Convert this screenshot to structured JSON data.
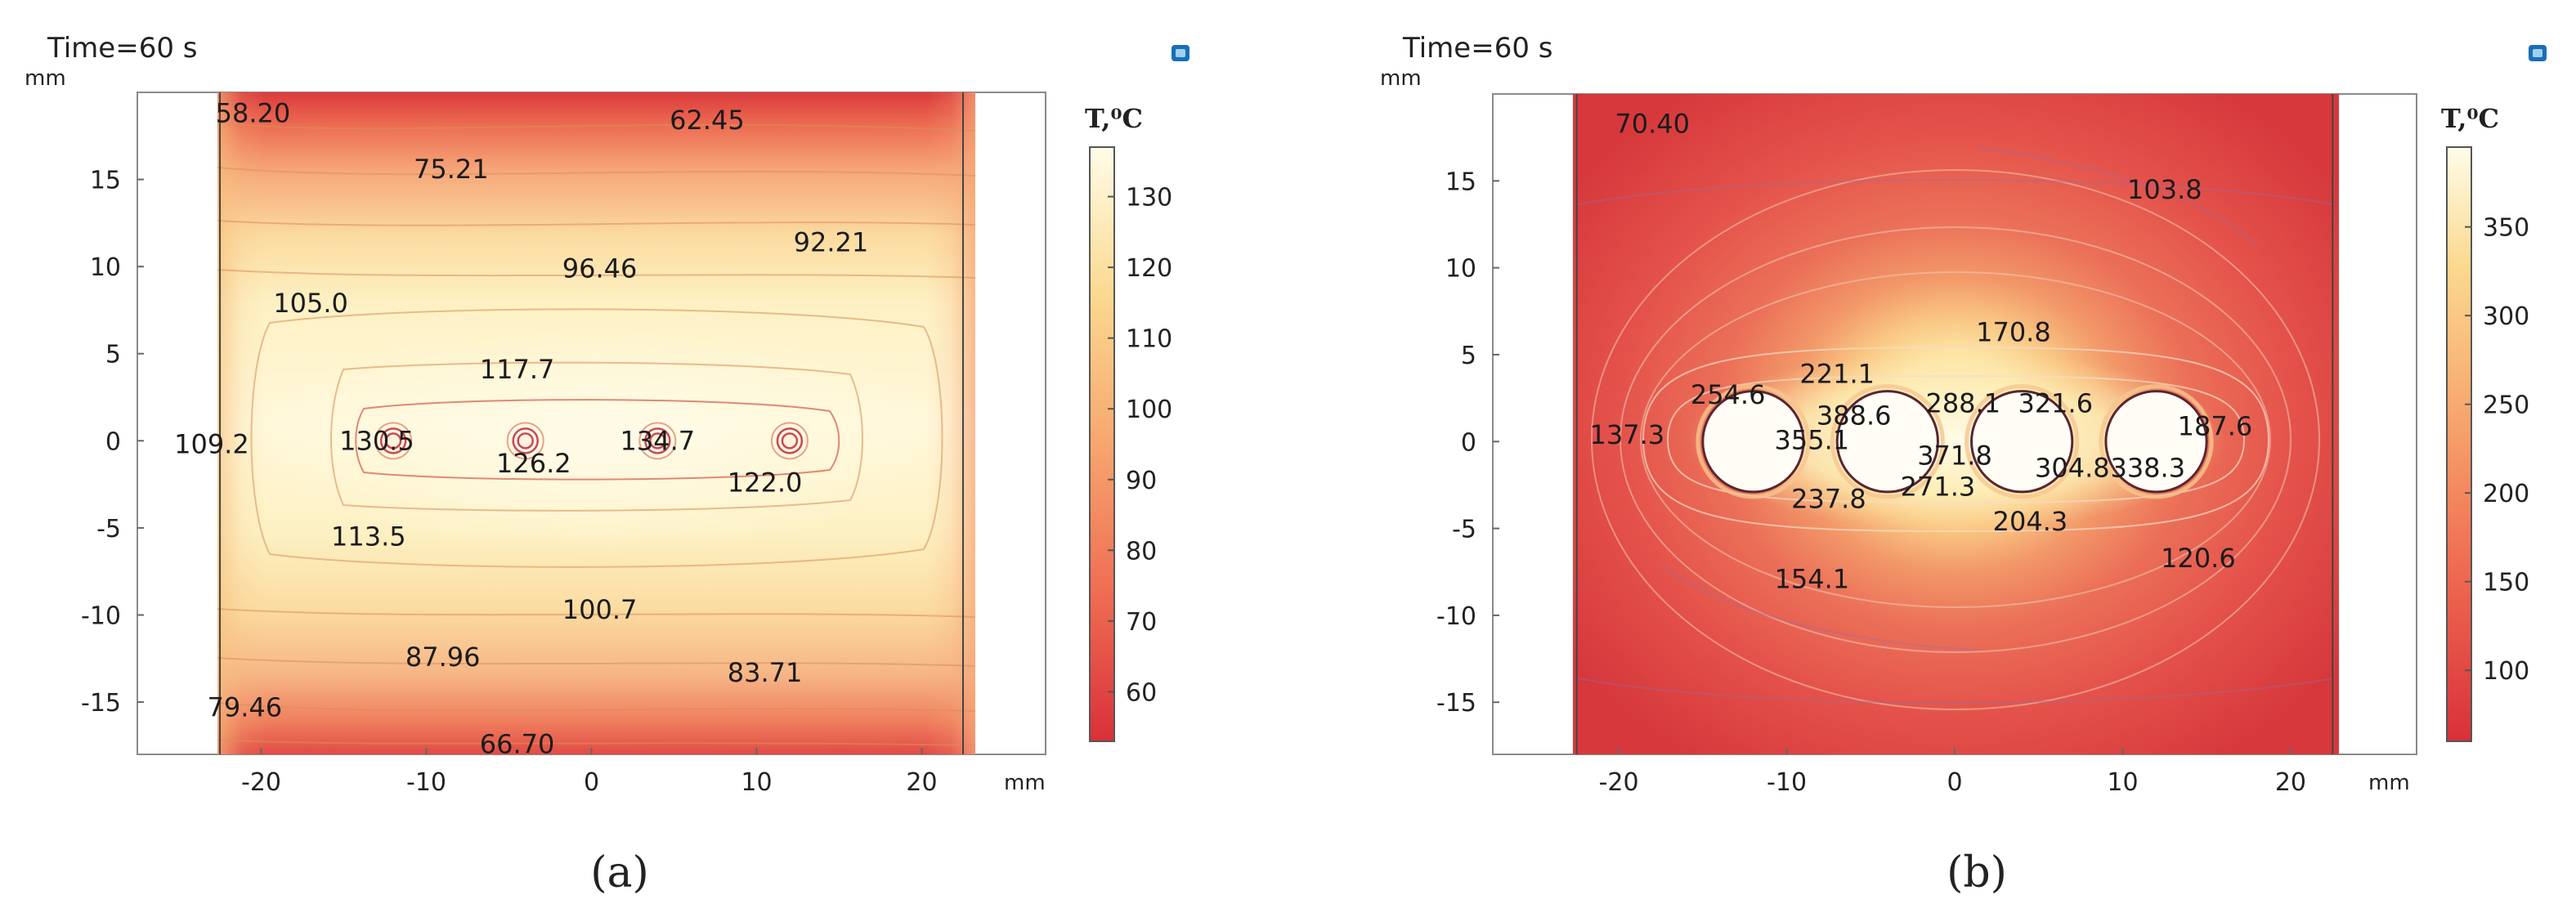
{
  "figure": {
    "captions": [
      "(a)",
      "(b)"
    ]
  },
  "chart_data": [
    {
      "type": "heatmap",
      "panel": "a",
      "title": "Time=60 s",
      "x_unit_label": "mm",
      "y_unit_label": "mm",
      "xlim": [
        -27.5,
        27.5
      ],
      "ylim": [
        -18,
        20
      ],
      "domain_x": [
        -22.5,
        22.5
      ],
      "domain_y": [
        -18,
        20
      ],
      "x_ticks": [
        -20,
        -10,
        0,
        10,
        20
      ],
      "y_ticks": [
        15,
        10,
        5,
        0,
        -5,
        -10,
        -15
      ],
      "colorbar": {
        "title": "T,⁰C",
        "ticks": [
          130,
          120,
          110,
          100,
          90,
          80,
          70,
          60
        ],
        "min": 53,
        "max": 137
      },
      "heat_sources": [
        {
          "x": -12,
          "y": 0
        },
        {
          "x": -4,
          "y": 0
        },
        {
          "x": 4,
          "y": 0
        },
        {
          "x": 12,
          "y": 0
        }
      ],
      "contour_labels": [
        {
          "text": "58.20",
          "x": -20.5,
          "y": 18.7
        },
        {
          "text": "62.45",
          "x": 7,
          "y": 18.3
        },
        {
          "text": "75.21",
          "x": -8.5,
          "y": 15.5
        },
        {
          "text": "92.21",
          "x": 14.5,
          "y": 11.3
        },
        {
          "text": "96.46",
          "x": 0.5,
          "y": 9.8
        },
        {
          "text": "105.0",
          "x": -17,
          "y": 7.8
        },
        {
          "text": "117.7",
          "x": -4.5,
          "y": 4
        },
        {
          "text": "109.2",
          "x": -23,
          "y": -0.3
        },
        {
          "text": "130.5",
          "x": -13,
          "y": -0.1
        },
        {
          "text": "126.2",
          "x": -3.5,
          "y": -1.4
        },
        {
          "text": "134.7",
          "x": 4,
          "y": -0.1
        },
        {
          "text": "122.0",
          "x": 10.5,
          "y": -2.5
        },
        {
          "text": "113.5",
          "x": -13.5,
          "y": -5.6
        },
        {
          "text": "100.7",
          "x": 0.5,
          "y": -9.8
        },
        {
          "text": "87.96",
          "x": -9,
          "y": -12.5
        },
        {
          "text": "83.71",
          "x": 10.5,
          "y": -13.4
        },
        {
          "text": "79.46",
          "x": -21,
          "y": -15.4
        },
        {
          "text": "66.70",
          "x": -4.5,
          "y": -17.5
        }
      ]
    },
    {
      "type": "heatmap",
      "panel": "b",
      "title": "Time=60 s",
      "x_unit_label": "mm",
      "y_unit_label": "mm",
      "xlim": [
        -27.5,
        27.5
      ],
      "ylim": [
        -18,
        20
      ],
      "domain_x": [
        -22.5,
        22.5
      ],
      "domain_y": [
        -18,
        20
      ],
      "x_ticks": [
        -20,
        -10,
        0,
        10,
        20
      ],
      "y_ticks": [
        15,
        10,
        5,
        0,
        -5,
        -10,
        -15
      ],
      "colorbar": {
        "title": "T,⁰C",
        "ticks": [
          350,
          300,
          250,
          200,
          150,
          100
        ],
        "min": 60,
        "max": 395
      },
      "heat_sources": [
        {
          "x": -12,
          "y": 0,
          "r": 3
        },
        {
          "x": -4,
          "y": 0,
          "r": 3
        },
        {
          "x": 4,
          "y": 0,
          "r": 3
        },
        {
          "x": 12,
          "y": 0,
          "r": 3
        }
      ],
      "contour_labels": [
        {
          "text": "70.40",
          "x": -18,
          "y": 18.2
        },
        {
          "text": "103.8",
          "x": 12.5,
          "y": 14.4
        },
        {
          "text": "170.8",
          "x": 3.5,
          "y": 6.2
        },
        {
          "text": "221.1",
          "x": -7,
          "y": 3.8
        },
        {
          "text": "254.6",
          "x": -13.5,
          "y": 2.6
        },
        {
          "text": "388.6",
          "x": -6,
          "y": 1.4
        },
        {
          "text": "288.1",
          "x": 0.5,
          "y": 2.1
        },
        {
          "text": "321.6",
          "x": 6,
          "y": 2.1
        },
        {
          "text": "137.3",
          "x": -19.5,
          "y": 0.3
        },
        {
          "text": "355.1",
          "x": -8.5,
          "y": 0
        },
        {
          "text": "371.8",
          "x": 0,
          "y": -0.9
        },
        {
          "text": "187.6",
          "x": 15.5,
          "y": 0.8
        },
        {
          "text": "304.8",
          "x": 7,
          "y": -1.6
        },
        {
          "text": "338.3",
          "x": 11.5,
          "y": -1.6
        },
        {
          "text": "237.8",
          "x": -7.5,
          "y": -3.4
        },
        {
          "text": "271.3",
          "x": -1,
          "y": -2.7
        },
        {
          "text": "204.3",
          "x": 4.5,
          "y": -4.7
        },
        {
          "text": "154.1",
          "x": -8.5,
          "y": -8
        },
        {
          "text": "120.6",
          "x": 14.5,
          "y": -6.8
        }
      ]
    }
  ]
}
